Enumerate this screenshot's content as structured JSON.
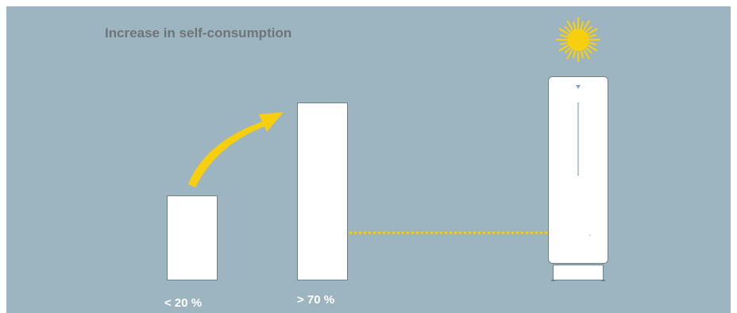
{
  "title": "Increase in self-consumption",
  "bars": [
    {
      "label": "< 20 %",
      "level": "low"
    },
    {
      "label": "> 70 %",
      "level": "high"
    }
  ],
  "icons": {
    "sun": "sun-icon",
    "arrow": "curved-arrow-icon",
    "battery": "battery-storage-icon"
  },
  "colors": {
    "background": "#9db5c0",
    "accent": "#f7cf0e",
    "bar": "#ffffff",
    "title": "#6e7478",
    "label": "#ffffff"
  }
}
